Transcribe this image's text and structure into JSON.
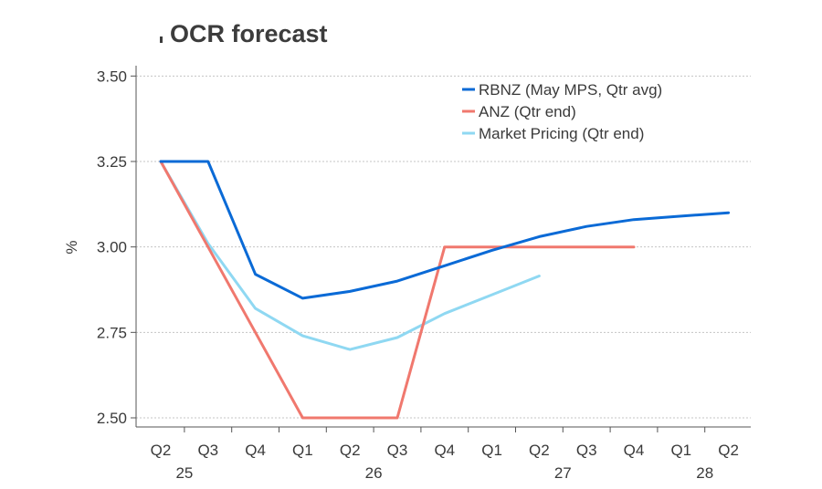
{
  "chart_data": {
    "type": "line",
    "title": "OCR forecast",
    "ylabel": "%",
    "xlabel": "",
    "ylim": [
      2.45,
      3.55
    ],
    "yticks": [
      2.5,
      2.75,
      3.0,
      3.25,
      3.5
    ],
    "ytick_labels": [
      "2.50",
      "2.75",
      "3.00",
      "3.25",
      "3.50"
    ],
    "grid": "horizontal dotted",
    "legend_position": "top-right",
    "categories": [
      "Q2",
      "Q3",
      "Q4",
      "Q1",
      "Q2",
      "Q3",
      "Q4",
      "Q1",
      "Q2",
      "Q3",
      "Q4",
      "Q1",
      "Q2"
    ],
    "year_labels": [
      {
        "label": "25",
        "category_index": 0.5
      },
      {
        "label": "26",
        "category_index": 4.5
      },
      {
        "label": "27",
        "category_index": 8.5
      },
      {
        "label": "28",
        "category_index": 11.5
      }
    ],
    "series": [
      {
        "name": "RBNZ (May MPS, Qtr avg)",
        "color": "#0a6ad6",
        "values": [
          3.25,
          3.25,
          2.92,
          2.85,
          2.87,
          2.9,
          2.945,
          2.99,
          3.03,
          3.06,
          3.08,
          3.09,
          3.1
        ]
      },
      {
        "name": "ANZ (Qtr end)",
        "color": "#f0786e",
        "values": [
          3.25,
          3.0,
          2.75,
          2.5,
          2.5,
          2.5,
          3.0,
          3.0,
          3.0,
          3.0,
          3.0,
          null,
          null
        ]
      },
      {
        "name": "Market Pricing (Qtr end)",
        "color": "#8fd8f2",
        "values": [
          3.25,
          3.01,
          2.82,
          2.74,
          2.7,
          2.735,
          2.805,
          2.86,
          2.915,
          null,
          null,
          null,
          null
        ]
      }
    ]
  }
}
